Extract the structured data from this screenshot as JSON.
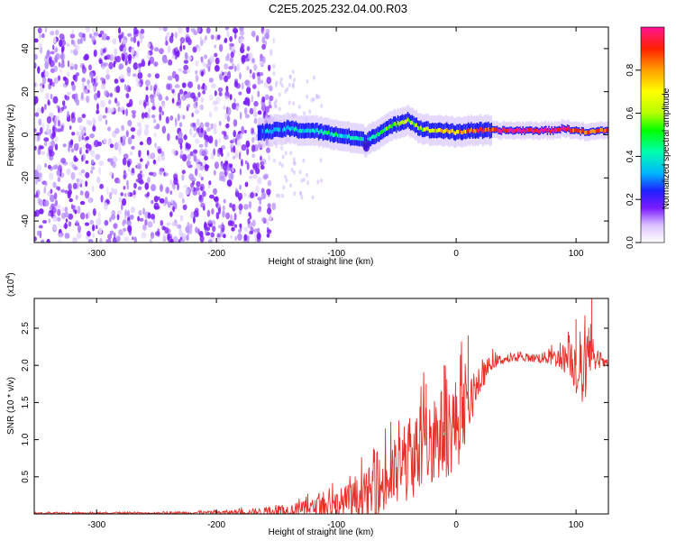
{
  "figure": {
    "title": "C2E5.2025.232.04.00.R03"
  },
  "chart_data": [
    {
      "type": "heatmap",
      "title": "C2E5.2025.232.04.00.R03",
      "xlabel": "Height of straight line (km)",
      "ylabel": "Frequency (Hz)",
      "xlim": [
        -352,
        127
      ],
      "ylim": [
        -50,
        50
      ],
      "x_ticks": [
        {
          "v": -300,
          "label": "-300"
        },
        {
          "v": -200,
          "label": "-200"
        },
        {
          "v": -100,
          "label": "-100"
        },
        {
          "v": 0,
          "label": "0"
        },
        {
          "v": 100,
          "label": "100"
        }
      ],
      "y_ticks": [
        {
          "v": -40,
          "label": "-40"
        },
        {
          "v": -20,
          "label": "-20"
        },
        {
          "v": 0,
          "label": "0"
        },
        {
          "v": 20,
          "label": "20"
        },
        {
          "v": 40,
          "label": "40"
        }
      ],
      "colorbar": {
        "label": "Normalized spectral amplitude",
        "range": [
          0,
          1
        ],
        "ticks": [
          {
            "v": 0.0,
            "label": "0.0"
          },
          {
            "v": 0.2,
            "label": "0.2"
          },
          {
            "v": 0.4,
            "label": "0.4"
          },
          {
            "v": 0.6,
            "label": "0.6"
          },
          {
            "v": 0.8,
            "label": "0.8"
          }
        ],
        "colors": [
          "#ffffff",
          "#dcc3ff",
          "#7a1cff",
          "#2020ff",
          "#00b4ff",
          "#00ffb0",
          "#00ff00",
          "#b4ff00",
          "#ffff00",
          "#ffa000",
          "#ff2000",
          "#ff1493"
        ]
      },
      "noise_region_x": [
        -352,
        -152
      ],
      "signal_ridge": {
        "x": [
          -165,
          -150,
          -140,
          -130,
          -120,
          -110,
          -100,
          -90,
          -80,
          -75,
          -70,
          -60,
          -50,
          -40,
          -35,
          -30,
          -20,
          -10,
          0,
          10,
          20,
          40,
          60,
          80,
          90,
          100,
          110,
          120,
          127
        ],
        "f": [
          1,
          2,
          3,
          2,
          2,
          1,
          0,
          -1,
          -2,
          -3,
          -1,
          2,
          5,
          7,
          5,
          3,
          2,
          2,
          1,
          2,
          2,
          2,
          2,
          2,
          3,
          2,
          1,
          2,
          2
        ],
        "amplitude": [
          0.35,
          0.35,
          0.4,
          0.4,
          0.4,
          0.45,
          0.45,
          0.45,
          0.45,
          0.35,
          0.45,
          0.55,
          0.6,
          0.65,
          0.6,
          0.65,
          0.7,
          0.75,
          0.8,
          0.85,
          0.9,
          0.95,
          0.97,
          0.97,
          0.95,
          0.9,
          0.85,
          0.85,
          0.85
        ]
      }
    },
    {
      "type": "line",
      "title": "",
      "xlabel": "Height of straight line (km)",
      "ylabel": "SNR (10 * v/v)",
      "y_exponent_label": "(x10",
      "y_exponent_power": "4",
      "y_exponent_close": ")",
      "xlim": [
        -352,
        127
      ],
      "ylim": [
        0,
        2.9
      ],
      "color": "#e8302a",
      "x_ticks": [
        {
          "v": -300,
          "label": "-300"
        },
        {
          "v": -200,
          "label": "-200"
        },
        {
          "v": -100,
          "label": "-100"
        },
        {
          "v": 0,
          "label": "0"
        },
        {
          "v": 100,
          "label": "100"
        }
      ],
      "y_ticks": [
        {
          "v": 0.5,
          "label": "0.5"
        },
        {
          "v": 1.0,
          "label": "1.0"
        },
        {
          "v": 1.5,
          "label": "1.5"
        },
        {
          "v": 2.0,
          "label": "2.0"
        },
        {
          "v": 2.5,
          "label": "2.5"
        }
      ],
      "envelope": {
        "x": [
          -352,
          -260,
          -200,
          -160,
          -140,
          -120,
          -100,
          -80,
          -60,
          -40,
          -20,
          0,
          5,
          10,
          20,
          30,
          40,
          60,
          80,
          95,
          100,
          105,
          110,
          115,
          120,
          127
        ],
        "base": [
          0.01,
          0.01,
          0.02,
          0.03,
          0.05,
          0.08,
          0.12,
          0.2,
          0.4,
          0.7,
          1.0,
          1.2,
          1.35,
          1.4,
          1.8,
          2.05,
          2.08,
          2.1,
          2.1,
          2.1,
          2.0,
          1.8,
          2.1,
          2.05,
          2.05,
          2.0
        ],
        "spread": [
          0.01,
          0.01,
          0.02,
          0.05,
          0.08,
          0.12,
          0.2,
          0.3,
          0.45,
          0.55,
          0.6,
          0.65,
          0.55,
          0.3,
          0.2,
          0.1,
          0.06,
          0.05,
          0.1,
          0.25,
          0.4,
          0.5,
          0.4,
          0.15,
          0.08,
          0.05
        ]
      },
      "spikes": [
        {
          "x": 113,
          "y": 2.9
        },
        {
          "x": 10,
          "y": 2.4
        },
        {
          "x": 100,
          "y": 2.62
        },
        {
          "x": -10,
          "y": 2.0
        },
        {
          "x": -25,
          "y": 1.75
        }
      ]
    }
  ]
}
